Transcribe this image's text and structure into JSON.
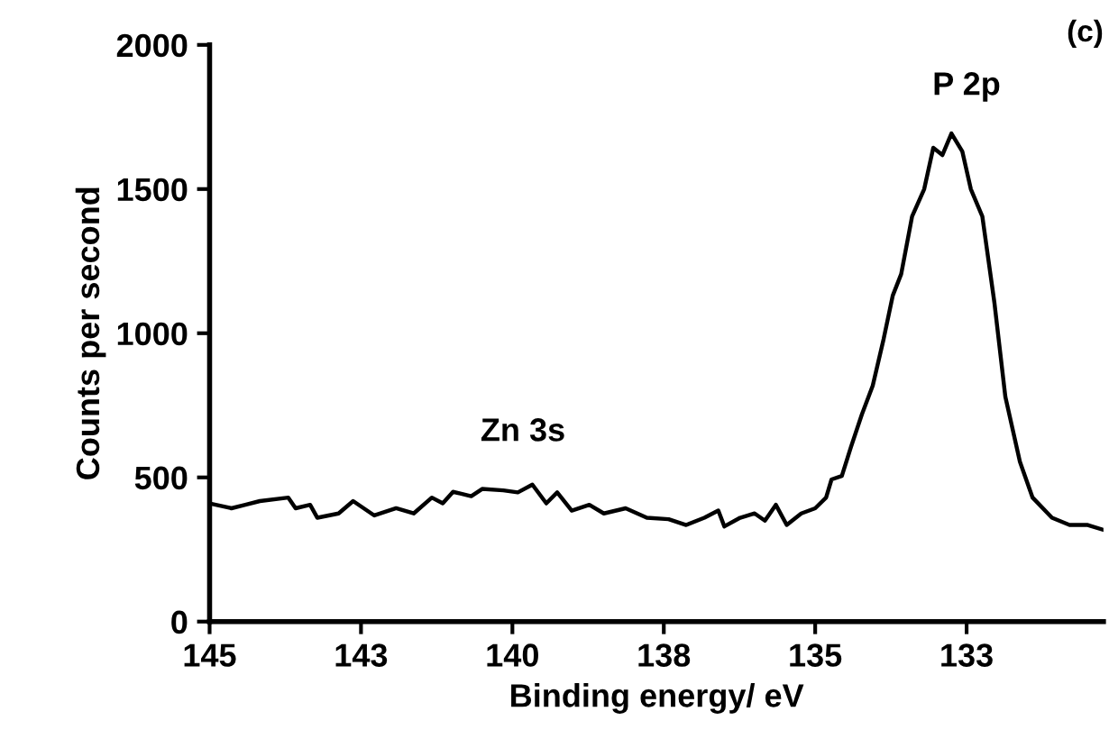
{
  "chart_data": {
    "type": "line",
    "xlabel": "Binding energy/ eV",
    "ylabel": "Counts per second",
    "xlim": [
      145,
      130.24
    ],
    "ylim": [
      0,
      2000
    ],
    "xticks": [
      145,
      {
        "value": 142.5,
        "label": "143"
      },
      140,
      {
        "value": 137.5,
        "label": "138"
      },
      135,
      {
        "value": 132.5,
        "label": "133"
      }
    ],
    "yticks": [
      0,
      500,
      1000,
      1500,
      2000
    ],
    "grid": false,
    "legend": false,
    "marker": "none",
    "line_style": "solid",
    "annotations": [
      "Zn 3s",
      "P 2p",
      "(c)"
    ],
    "series": [
      {
        "color": "#000000",
        "x": [
          145,
          144.64,
          144.41,
          144.17,
          143.7,
          143.58,
          143.34,
          143.22,
          142.87,
          142.63,
          142.28,
          141.92,
          141.63,
          141.33,
          141.15,
          140.98,
          140.68,
          140.5,
          140.15,
          139.91,
          139.67,
          139.44,
          139.26,
          139.02,
          138.73,
          138.49,
          138.13,
          137.78,
          137.42,
          137.13,
          136.83,
          136.6,
          136.5,
          136.24,
          136.0,
          135.83,
          135.65,
          135.47,
          135.23,
          135.0,
          134.82,
          134.73,
          134.56,
          134.41,
          134.23,
          134.05,
          133.87,
          133.72,
          133.58,
          133.4,
          133.2,
          133.05,
          132.9,
          132.75,
          132.57,
          132.43,
          132.24,
          132.04,
          131.86,
          131.62,
          131.41,
          131.09,
          130.8,
          130.5,
          130.24
        ],
        "values": [
          410,
          393,
          405,
          418,
          430,
          393,
          405,
          360,
          375,
          418,
          368,
          393,
          375,
          430,
          410,
          450,
          435,
          460,
          455,
          448,
          475,
          410,
          448,
          385,
          405,
          375,
          393,
          360,
          355,
          335,
          360,
          385,
          330,
          360,
          375,
          350,
          405,
          335,
          375,
          393,
          430,
          493,
          505,
          605,
          718,
          818,
          980,
          1130,
          1205,
          1405,
          1500,
          1643,
          1618,
          1693,
          1630,
          1500,
          1405,
          1105,
          780,
          555,
          430,
          360,
          335,
          335,
          318
        ]
      }
    ]
  }
}
